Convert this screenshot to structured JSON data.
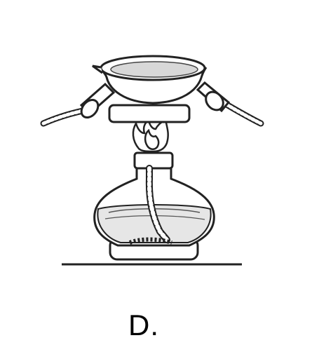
{
  "figure": {
    "option_label": "D.",
    "colors": {
      "stroke": "#222222",
      "liquid": "#d8d8d8",
      "paper": "#ffffff",
      "wick": "#777777"
    },
    "parts": [
      "evaporating-dish",
      "crucible-tongs",
      "flame",
      "alcohol-lamp",
      "table-surface"
    ]
  }
}
